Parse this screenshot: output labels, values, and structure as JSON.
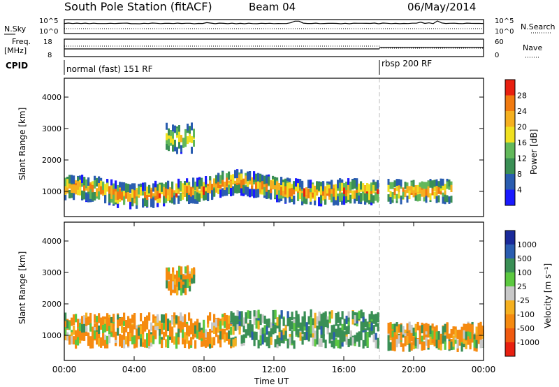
{
  "header": {
    "title": "South Pole Station (fitACF)",
    "beam": "Beam 04",
    "date": "06/May/2014"
  },
  "noise_panel": {
    "left_label": "N.Sky",
    "right_label": "N.Search",
    "ticks_left": [
      "10^5",
      "10^0"
    ],
    "ticks_right": [
      "10^5",
      "10^0"
    ]
  },
  "freq_panel": {
    "left_label_line1": "Freq.",
    "left_label_line2": "[MHz]",
    "right_label": "Nave",
    "ticks_left": [
      "18",
      "8"
    ],
    "ticks_right": [
      "60",
      "0"
    ]
  },
  "cpid": {
    "label": "CPID",
    "segments": [
      {
        "text": "normal (fast) 151 RF",
        "start_hour": 0
      },
      {
        "text": "rbsp 200 RF",
        "start_hour": 18
      }
    ]
  },
  "colors": {
    "power_scale": [
      "#1a1aff",
      "#2a5db0",
      "#3a8f55",
      "#62b85a",
      "#f0e020",
      "#f5b020",
      "#f07a10",
      "#e82010"
    ],
    "velocity_scale": [
      "#e82010",
      "#f05a10",
      "#f58a10",
      "#f5b020",
      "#c8c8c8",
      "#5cc840",
      "#3a8f55",
      "#2a5db0",
      "#1a2a9a"
    ]
  },
  "chart_data": [
    {
      "type": "heatmap",
      "name": "power",
      "ylabel": "Slant Range [km]",
      "yticks": [
        "1000",
        "2000",
        "3000",
        "4000"
      ],
      "ylim": [
        200,
        4600
      ],
      "xlim": [
        0,
        24
      ],
      "colorbar": {
        "label": "Power [dB]",
        "ticks": [
          "4",
          "8",
          "12",
          "16",
          "20",
          "24",
          "28"
        ],
        "range": [
          0,
          32
        ]
      },
      "bands": [
        {
          "x": [
            0,
            1,
            2,
            3,
            4,
            5,
            6,
            7,
            8,
            9,
            10,
            11,
            12,
            13,
            14,
            15,
            16,
            17,
            17.9
          ],
          "center": [
            1150,
            1100,
            1050,
            900,
            850,
            900,
            950,
            1000,
            1050,
            1250,
            1300,
            1200,
            1100,
            1000,
            950,
            950,
            1000,
            1000,
            950
          ],
          "width": 600,
          "peak_db": 28
        }
      ],
      "patches": [
        {
          "x_range": [
            18.5,
            22.2
          ],
          "range_km": [
            700,
            1300
          ],
          "peak_db": 26
        },
        {
          "x_range": [
            5.8,
            7.4
          ],
          "range_km": [
            2300,
            3100
          ],
          "peak_db": 20
        }
      ]
    },
    {
      "type": "heatmap",
      "name": "velocity",
      "ylabel": "Slant Range [km]",
      "yticks": [
        "1000",
        "2000",
        "3000",
        "4000"
      ],
      "ylim": [
        200,
        4600
      ],
      "xlim": [
        0,
        24
      ],
      "xticks": [
        "00:00",
        "04:00",
        "08:00",
        "12:00",
        "16:00",
        "20:00",
        "00:00"
      ],
      "xlabel": "Time UT",
      "colorbar": {
        "label": "Velocity [m s⁻¹]",
        "ticks": [
          "1000",
          "500",
          "100",
          "25",
          "-25",
          "-100",
          "-500",
          "-1000"
        ]
      },
      "regions": [
        {
          "x_range": [
            0,
            9.5
          ],
          "range_km": [
            700,
            1600
          ],
          "velocity": -150
        },
        {
          "x_range": [
            9.5,
            17.9
          ],
          "range_km": [
            700,
            1700
          ],
          "velocity": 250
        },
        {
          "x_range": [
            18.5,
            24
          ],
          "range_km": [
            600,
            1300
          ],
          "velocity": -100
        },
        {
          "x_range": [
            5.8,
            7.4
          ],
          "range_km": [
            2400,
            3100
          ],
          "velocity": -100
        }
      ]
    }
  ]
}
